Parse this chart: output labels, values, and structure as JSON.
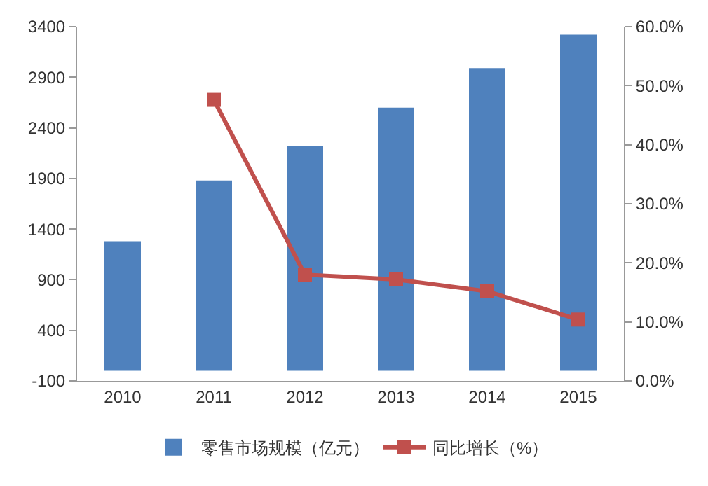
{
  "chart_data": {
    "type": "bar",
    "categories": [
      "2010",
      "2011",
      "2012",
      "2013",
      "2014",
      "2015"
    ],
    "series": [
      {
        "name": "零售市场规模（亿元）",
        "color": "#4f81bd",
        "values": [
          1280,
          1880,
          2220,
          2600,
          2990,
          3320
        ]
      },
      {
        "name": "同比增长（%）",
        "type": "line",
        "axis": "y2",
        "color": "#c0504d",
        "marker": "square",
        "values": [
          null,
          47.6,
          18.0,
          17.2,
          15.2,
          10.4
        ]
      }
    ],
    "ylim": [
      -100,
      3400
    ],
    "yticks": [
      -100,
      400,
      900,
      1400,
      1900,
      2400,
      2900,
      3400
    ],
    "y2lim": [
      0,
      60
    ],
    "y2ticks": [
      {
        "value": 0,
        "label": "0.0%"
      },
      {
        "value": 10,
        "label": "10.0%"
      },
      {
        "value": 20,
        "label": "20.0%"
      },
      {
        "value": 30,
        "label": "30.0%"
      },
      {
        "value": 40,
        "label": "40.0%"
      },
      {
        "value": 50,
        "label": "50.0%"
      },
      {
        "value": 60,
        "label": "60.0%"
      }
    ],
    "grid": false,
    "legend": "bottom"
  }
}
